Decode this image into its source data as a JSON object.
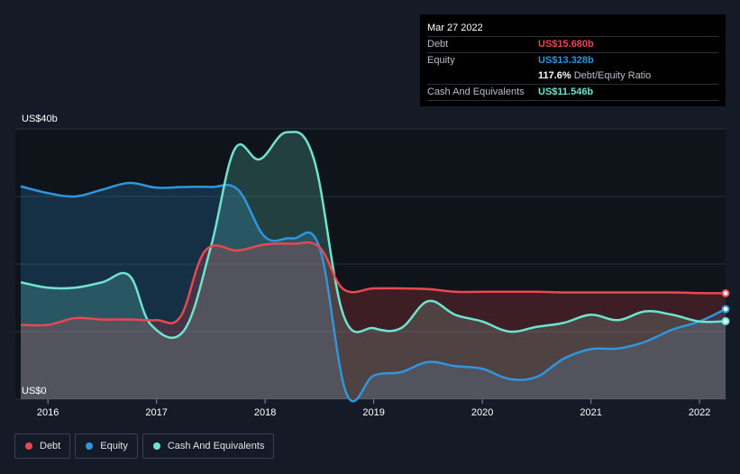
{
  "colors": {
    "debt": "#e8484f",
    "equity": "#2f95dc",
    "cash": "#6fe3cf",
    "background": "#151b26",
    "plot_background": "#0f131a"
  },
  "tooltip": {
    "date": "Mar 27 2022",
    "rows": [
      {
        "label": "Debt",
        "value": "US$15.680b",
        "color": "#e8484f"
      },
      {
        "label": "Equity",
        "value": "US$13.328b",
        "color": "#2f95dc"
      },
      {
        "label": "",
        "value": "117.6%",
        "color": "#ffffff",
        "suffix": "Debt/Equity Ratio"
      },
      {
        "label": "Cash And Equivalents",
        "value": "US$11.546b",
        "color": "#6fe3cf"
      }
    ]
  },
  "legend": [
    {
      "name": "Debt",
      "color": "#e8484f"
    },
    {
      "name": "Equity",
      "color": "#2f95dc"
    },
    {
      "name": "Cash And Equivalents",
      "color": "#6fe3cf"
    }
  ],
  "chart_data": {
    "type": "area",
    "title": "",
    "xlabel": "",
    "ylabel": "",
    "xlim": [
      2015.7,
      2022.24
    ],
    "ylim": [
      0,
      40
    ],
    "y_ticks": [
      {
        "value": 40,
        "label": "US$40b"
      },
      {
        "value": 0,
        "label": "US$0"
      }
    ],
    "x_ticks": [
      2016,
      2017,
      2018,
      2019,
      2020,
      2021,
      2022
    ],
    "grid": true,
    "legend_position": "bottom-left",
    "series": [
      {
        "name": "Debt",
        "x": [
          2015.75,
          2016.0,
          2016.25,
          2016.5,
          2016.75,
          2017.0,
          2017.22,
          2017.45,
          2017.75,
          2018.0,
          2018.25,
          2018.5,
          2018.72,
          2019.0,
          2019.25,
          2019.5,
          2019.75,
          2020.0,
          2020.25,
          2020.5,
          2020.75,
          2021.0,
          2021.25,
          2021.5,
          2021.75,
          2022.0,
          2022.24
        ],
        "values": [
          11.0,
          11.0,
          12.0,
          11.8,
          11.8,
          11.7,
          12.2,
          22.0,
          22.0,
          22.9,
          23.0,
          22.5,
          16.3,
          16.4,
          16.4,
          16.3,
          15.9,
          15.9,
          15.9,
          15.9,
          15.8,
          15.8,
          15.8,
          15.8,
          15.8,
          15.7,
          15.68
        ]
      },
      {
        "name": "Equity",
        "x": [
          2015.75,
          2016.0,
          2016.25,
          2016.5,
          2016.75,
          2017.0,
          2017.25,
          2017.5,
          2017.75,
          2018.0,
          2018.25,
          2018.5,
          2018.75,
          2019.0,
          2019.25,
          2019.5,
          2019.75,
          2020.0,
          2020.25,
          2020.5,
          2020.75,
          2021.0,
          2021.25,
          2021.5,
          2021.75,
          2022.0,
          2022.24
        ],
        "values": [
          31.5,
          30.5,
          30.0,
          31.0,
          32.0,
          31.3,
          31.4,
          31.4,
          31.0,
          24.0,
          23.8,
          22.5,
          0.8,
          3.5,
          4.0,
          5.5,
          4.9,
          4.5,
          3.0,
          3.3,
          6.0,
          7.4,
          7.5,
          8.5,
          10.3,
          11.5,
          13.328
        ]
      },
      {
        "name": "Cash And Equivalents",
        "x": [
          2015.75,
          2016.0,
          2016.25,
          2016.5,
          2016.75,
          2016.95,
          2017.25,
          2017.5,
          2017.72,
          2017.95,
          2018.2,
          2018.45,
          2018.72,
          2019.0,
          2019.25,
          2019.5,
          2019.75,
          2020.0,
          2020.25,
          2020.5,
          2020.75,
          2021.0,
          2021.25,
          2021.5,
          2021.75,
          2022.0,
          2022.24
        ],
        "values": [
          17.3,
          16.5,
          16.5,
          17.3,
          18.3,
          11.0,
          10.1,
          22.5,
          37.0,
          35.5,
          39.5,
          35.5,
          12.5,
          10.5,
          10.5,
          14.5,
          12.5,
          11.5,
          10.0,
          10.7,
          11.3,
          12.5,
          11.7,
          13.0,
          12.5,
          11.5,
          11.546
        ]
      }
    ]
  }
}
